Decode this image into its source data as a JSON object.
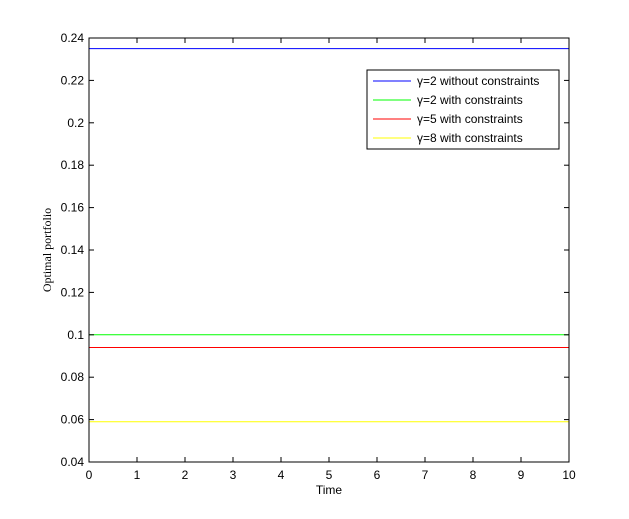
{
  "chart_data": {
    "type": "line",
    "xlabel": "Time",
    "ylabel": "Optimal portfolio",
    "xlim": [
      0,
      10
    ],
    "ylim": [
      0.04,
      0.24
    ],
    "x_ticks": [
      0,
      1,
      2,
      3,
      4,
      5,
      6,
      7,
      8,
      9,
      10
    ],
    "x_tick_labels": [
      "0",
      "1",
      "2",
      "3",
      "4",
      "5",
      "6",
      "7",
      "8",
      "9",
      "10"
    ],
    "y_ticks": [
      0.04,
      0.06,
      0.08,
      0.1,
      0.12,
      0.14,
      0.16,
      0.18,
      0.2,
      0.22,
      0.24
    ],
    "y_tick_labels": [
      "0.04",
      "0.06",
      "0.08",
      "0.1",
      "0.12",
      "0.14",
      "0.16",
      "0.18",
      "0.2",
      "0.22",
      "0.24"
    ],
    "grid": false,
    "legend_position": "top-right",
    "series": [
      {
        "name": "γ=2 without constraints",
        "color": "#0000ff",
        "x": [
          0,
          10
        ],
        "values": [
          0.235,
          0.235
        ]
      },
      {
        "name": "γ=2 with constraints",
        "color": "#00ff00",
        "x": [
          0,
          10
        ],
        "values": [
          0.1,
          0.1
        ]
      },
      {
        "name": "γ=5 with constraints",
        "color": "#ff0000",
        "x": [
          0,
          10
        ],
        "values": [
          0.094,
          0.094
        ]
      },
      {
        "name": "γ=8 with constraints",
        "color": "#ffff00",
        "x": [
          0,
          10
        ],
        "values": [
          0.059,
          0.059
        ]
      }
    ]
  }
}
